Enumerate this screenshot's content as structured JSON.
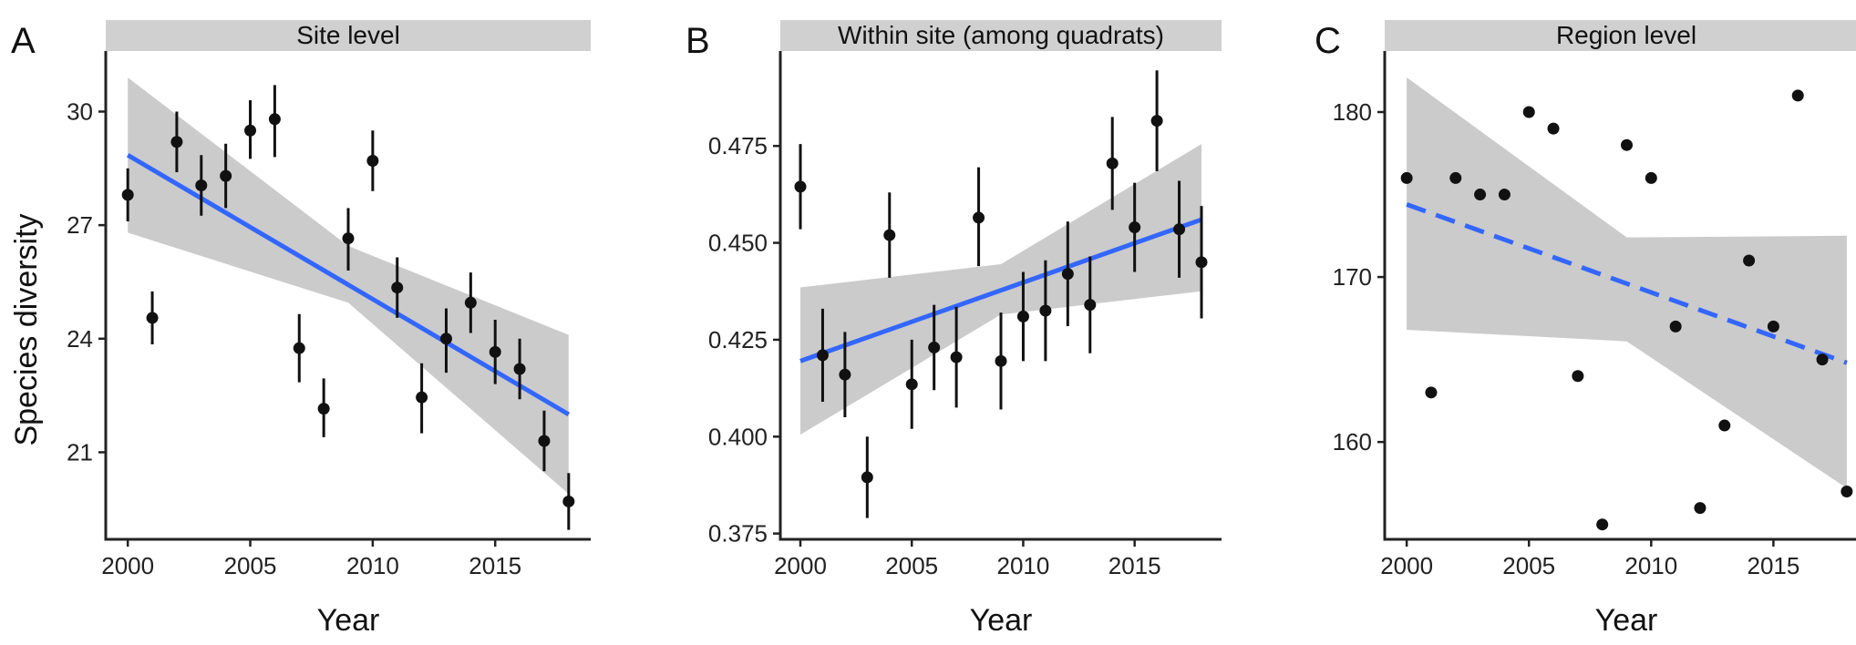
{
  "chart_data": [
    {
      "panel_tag": "A",
      "type": "scatter",
      "title": "Site level",
      "xlabel": "Year",
      "ylabel": "Species diversity",
      "xlim": [
        1999.1,
        2018.9
      ],
      "ylim": [
        18.7,
        31.6
      ],
      "xticks": [
        2000,
        2005,
        2010,
        2015
      ],
      "yticks": [
        21,
        24,
        27,
        30
      ],
      "x": [
        2000,
        2001,
        2002,
        2003,
        2004,
        2005,
        2006,
        2007,
        2008,
        2009,
        2010,
        2011,
        2012,
        2013,
        2014,
        2015,
        2016,
        2017,
        2018
      ],
      "y": [
        27.8,
        24.55,
        29.2,
        28.05,
        28.3,
        29.5,
        29.8,
        23.75,
        22.15,
        26.65,
        28.7,
        25.35,
        22.45,
        24.0,
        24.95,
        23.65,
        23.2,
        21.3,
        19.7
      ],
      "error_low": [
        27.1,
        23.85,
        28.4,
        27.25,
        27.45,
        28.75,
        28.8,
        22.85,
        21.4,
        25.8,
        27.9,
        24.55,
        21.5,
        23.1,
        24.15,
        22.8,
        22.4,
        20.5,
        18.95
      ],
      "error_high": [
        28.5,
        25.25,
        30.0,
        28.85,
        29.15,
        30.3,
        30.7,
        24.65,
        22.95,
        27.45,
        29.5,
        26.15,
        23.35,
        24.8,
        25.75,
        24.5,
        24.0,
        22.1,
        20.45
      ],
      "fit": {
        "style": "solid",
        "x": [
          2000,
          2018
        ],
        "y": [
          28.85,
          22.0
        ]
      },
      "ci_band": {
        "x": [
          2000,
          2009,
          2018
        ],
        "lower": [
          26.8,
          24.95,
          19.9
        ],
        "upper": [
          30.9,
          26.45,
          24.1
        ]
      },
      "grid": false,
      "colors": {
        "points": "#111111",
        "error_bars": "#111111",
        "fit": "#3366ff",
        "band": "#cbcbcb",
        "strip": "#d0d0d0",
        "axis": "#222222"
      }
    },
    {
      "panel_tag": "B",
      "type": "scatter",
      "title": "Within site (among quadrats)",
      "xlabel": "Year",
      "ylabel": "",
      "xlim": [
        1999.1,
        2018.9
      ],
      "ylim": [
        0.3735,
        0.4995
      ],
      "xticks": [
        2000,
        2005,
        2010,
        2015
      ],
      "yticks": [
        0.375,
        0.4,
        0.425,
        0.45,
        0.475
      ],
      "ytick_labels": [
        "0.375",
        "0.400",
        "0.425",
        "0.450",
        "0.475"
      ],
      "x": [
        2000,
        2001,
        2002,
        2003,
        2004,
        2005,
        2006,
        2007,
        2008,
        2009,
        2010,
        2011,
        2012,
        2013,
        2014,
        2015,
        2016,
        2017,
        2018
      ],
      "y": [
        0.4645,
        0.421,
        0.416,
        0.3895,
        0.452,
        0.4135,
        0.423,
        0.4205,
        0.4565,
        0.4195,
        0.431,
        0.4325,
        0.442,
        0.434,
        0.4705,
        0.454,
        0.4815,
        0.4535,
        0.445
      ],
      "error_low": [
        0.4535,
        0.409,
        0.405,
        0.379,
        0.441,
        0.402,
        0.412,
        0.4075,
        0.444,
        0.407,
        0.4195,
        0.4195,
        0.4285,
        0.4215,
        0.4585,
        0.4425,
        0.4685,
        0.441,
        0.4305
      ],
      "error_high": [
        0.4755,
        0.433,
        0.427,
        0.4,
        0.463,
        0.425,
        0.434,
        0.4335,
        0.4695,
        0.432,
        0.4425,
        0.4455,
        0.4555,
        0.4465,
        0.4825,
        0.4655,
        0.4945,
        0.466,
        0.4595
      ],
      "fit": {
        "style": "solid",
        "x": [
          2000,
          2018
        ],
        "y": [
          0.4195,
          0.456
        ]
      },
      "ci_band": {
        "x": [
          2000,
          2009,
          2018
        ],
        "lower": [
          0.4005,
          0.4315,
          0.4375
        ],
        "upper": [
          0.4385,
          0.4445,
          0.4755
        ]
      },
      "grid": false,
      "colors": {
        "points": "#111111",
        "error_bars": "#111111",
        "fit": "#3366ff",
        "band": "#cbcbcb",
        "strip": "#d0d0d0",
        "axis": "#222222"
      }
    },
    {
      "panel_tag": "C",
      "type": "scatter",
      "title": "Region level",
      "xlabel": "Year",
      "ylabel": "",
      "xlim": [
        1999.1,
        2018.9
      ],
      "ylim": [
        154.1,
        183.7
      ],
      "xticks": [
        2000,
        2005,
        2010,
        2015
      ],
      "yticks": [
        160,
        170,
        180
      ],
      "x": [
        2000,
        2001,
        2002,
        2003,
        2004,
        2005,
        2006,
        2007,
        2008,
        2009,
        2010,
        2011,
        2012,
        2013,
        2014,
        2015,
        2016,
        2017,
        2018
      ],
      "y": [
        176,
        163,
        176,
        175,
        175,
        180,
        179,
        164,
        155,
        178,
        176,
        167,
        156,
        161,
        171,
        167,
        181,
        165,
        157
      ],
      "fit": {
        "style": "dashed",
        "x": [
          2000,
          2018
        ],
        "y": [
          174.4,
          164.8
        ]
      },
      "ci_band": {
        "x": [
          2000,
          2009,
          2018
        ],
        "lower": [
          166.8,
          166.1,
          157.2
        ],
        "upper": [
          182.1,
          172.4,
          172.5
        ]
      },
      "grid": false,
      "colors": {
        "points": "#111111",
        "fit": "#3366ff",
        "band": "#cbcbcb",
        "strip": "#d0d0d0",
        "axis": "#222222"
      }
    }
  ]
}
